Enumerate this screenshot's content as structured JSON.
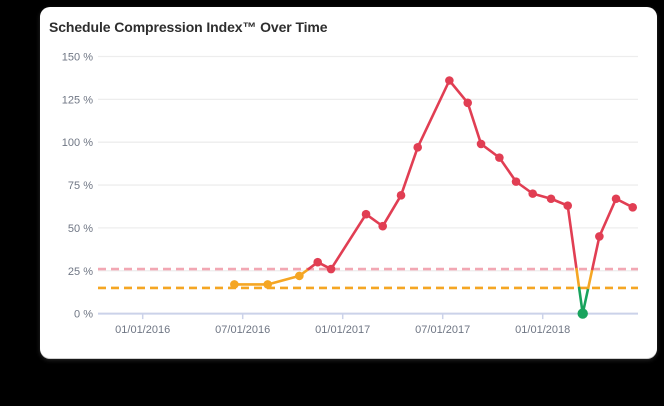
{
  "card": {
    "title": "Schedule Compression Index™ Over Time"
  },
  "colors": {
    "card_background": "#ffffff",
    "page_background": "#000000",
    "title_text": "#2e2e2e",
    "axis_label_text": "#6f7684",
    "gridline": "#ededed",
    "axis_line": "#cbd2e9"
  },
  "chart_data": {
    "type": "line",
    "title": "Schedule Compression Index™ Over Time",
    "xlabel": "",
    "ylabel": "",
    "grid": true,
    "legend": false,
    "x_axis": {
      "tick_labels": [
        "01/01/2016",
        "07/01/2016",
        "01/01/2017",
        "07/01/2017",
        "01/01/2018"
      ],
      "tick_months": [
        0,
        6,
        12,
        18,
        24
      ],
      "range_months": [
        -2.7,
        29.7
      ]
    },
    "y_axis": {
      "tick_labels": [
        "0 %",
        "25 %",
        "50 %",
        "75 %",
        "100 %",
        "125 %",
        "150 %"
      ],
      "ticks": [
        0,
        25,
        50,
        75,
        100,
        125,
        150
      ],
      "ylim": [
        0,
        150
      ],
      "unit": "%"
    },
    "thresholds": [
      {
        "name": "upper-threshold",
        "value": 26,
        "color": "#f2a7b3",
        "style": "dashed"
      },
      {
        "name": "lower-threshold",
        "value": 15,
        "color": "#f5a623",
        "style": "dashed"
      }
    ],
    "zone_colors": {
      "high": "#e13e53",
      "mid": "#f5a623",
      "low": "#18a35d"
    },
    "series": [
      {
        "name": "Schedule Compression Index",
        "points": [
          {
            "month": 5.5,
            "value": 17
          },
          {
            "month": 7.5,
            "value": 17
          },
          {
            "month": 9.4,
            "value": 22
          },
          {
            "month": 10.5,
            "value": 30
          },
          {
            "month": 11.3,
            "value": 26
          },
          {
            "month": 13.4,
            "value": 58
          },
          {
            "month": 14.4,
            "value": 51
          },
          {
            "month": 15.5,
            "value": 69
          },
          {
            "month": 16.5,
            "value": 97
          },
          {
            "month": 18.4,
            "value": 136
          },
          {
            "month": 19.5,
            "value": 123
          },
          {
            "month": 20.3,
            "value": 99
          },
          {
            "month": 21.4,
            "value": 91
          },
          {
            "month": 22.4,
            "value": 77
          },
          {
            "month": 23.4,
            "value": 70
          },
          {
            "month": 24.5,
            "value": 67
          },
          {
            "month": 25.5,
            "value": 63
          },
          {
            "month": 26.4,
            "value": 0
          },
          {
            "month": 27.4,
            "value": 45
          },
          {
            "month": 28.4,
            "value": 67
          },
          {
            "month": 29.4,
            "value": 62
          }
        ]
      }
    ]
  }
}
